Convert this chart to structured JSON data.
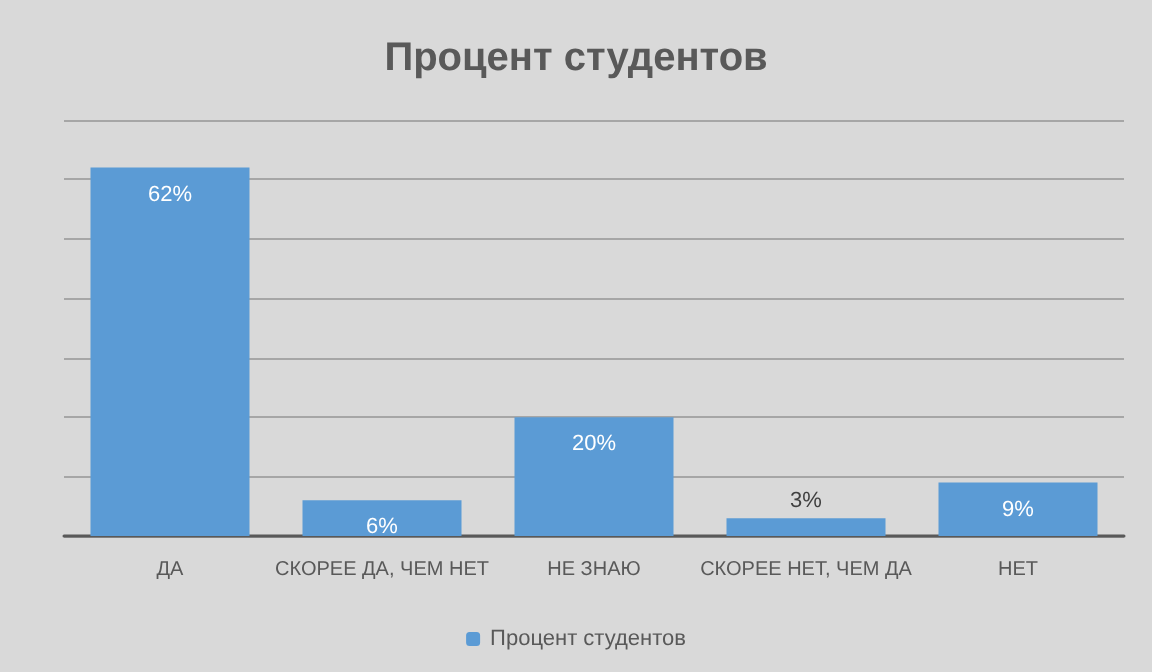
{
  "chart_data": {
    "type": "bar",
    "title": "Процент студентов",
    "categories": [
      "ДА",
      "СКОРЕЕ ДА, ЧЕМ НЕТ",
      "НЕ ЗНАЮ",
      "СКОРЕЕ НЕТ, ЧЕМ ДА",
      "НЕТ"
    ],
    "series": [
      {
        "name": "Процент студентов",
        "color": "#5b9bd5",
        "values": [
          62,
          6,
          20,
          3,
          9
        ],
        "value_labels": [
          "62%",
          "6%",
          "20%",
          "3%",
          "9%"
        ]
      }
    ],
    "tick_labels": "x",
    "grid": "y",
    "legend": "bottom"
  }
}
